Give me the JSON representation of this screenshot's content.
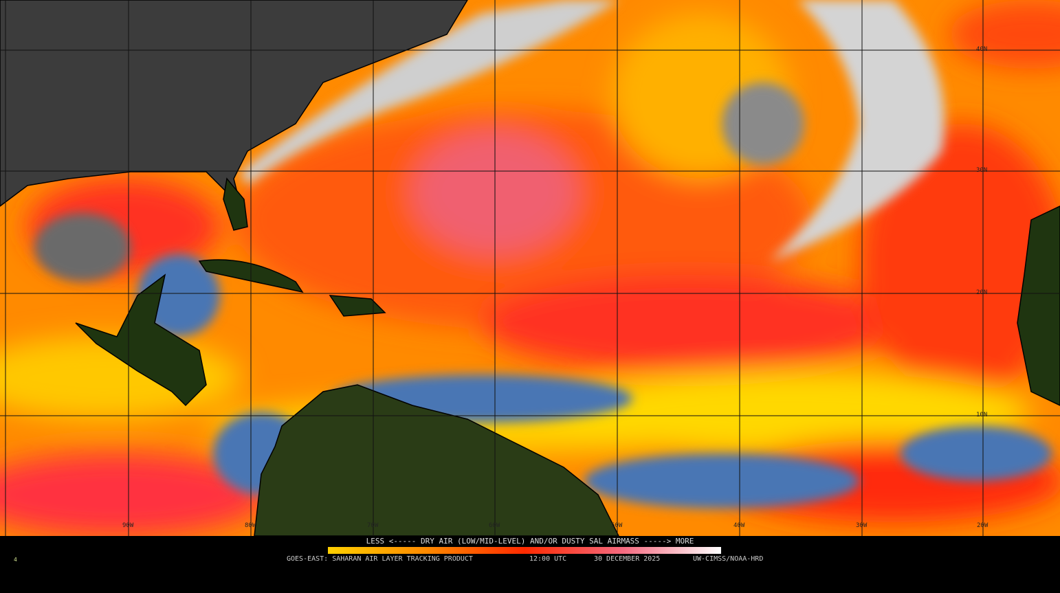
{
  "map": {
    "longitude_labels": [
      "90W",
      "80W",
      "70W",
      "60W",
      "50W",
      "40W",
      "30W",
      "20W"
    ],
    "latitude_labels": [
      "40N",
      "30N",
      "20N",
      "10N"
    ],
    "colors": {
      "land_north_america": "#3c3c3c",
      "land_tropics": "#1f3510",
      "cloud": "#d8d8d8",
      "moist_blue": "#4a76b4",
      "sal_yellow": "#ffd800",
      "sal_orange": "#ff8c00",
      "sal_red": "#ff2a1a",
      "sal_pink": "#f48a9a"
    }
  },
  "legend": {
    "title": "LESS <----- DRY AIR (LOW/MID-LEVEL) AND/OR DUSTY SAL AIRMASS -----> MORE",
    "colorbar": [
      "#ffd000",
      "#ff8a00",
      "#ff2a00",
      "#f56a80",
      "#ffffff"
    ]
  },
  "footer": {
    "product": "GOES-EAST: SAHARAN AIR LAYER TRACKING PRODUCT",
    "time": "12:00 UTC",
    "date": "30 DECEMBER 2025",
    "credit": "UW-CIMSS/NOAA-HRD",
    "frame": "4"
  }
}
